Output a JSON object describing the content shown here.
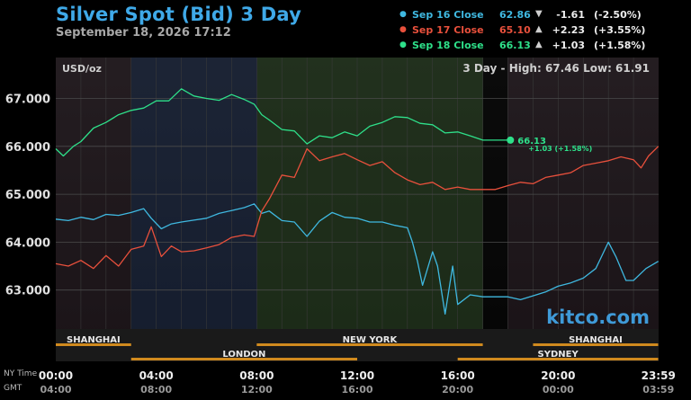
{
  "header": {
    "title": "Silver Spot (Bid) 3 Day",
    "subtitle": "September 18, 2026 17:12"
  },
  "legend": [
    {
      "name": "Sep 16 Close",
      "price": "62.86",
      "arrow": "▼",
      "change": "-1.61",
      "pct": "(-2.50%)",
      "color": "#3fb8e0"
    },
    {
      "name": "Sep 17 Close",
      "price": "65.10",
      "arrow": "▲",
      "change": "+2.23",
      "pct": "(+3.55%)",
      "color": "#e8503c"
    },
    {
      "name": "Sep 18 Close",
      "price": "66.13",
      "arrow": "▲",
      "change": "+1.03",
      "pct": "(+1.58%)",
      "color": "#2ee08a"
    }
  ],
  "chart_labels": {
    "unit": "USD/oz",
    "range_text": "3 Day - High: 67.46  Low: 61.91",
    "watermark": "kitco.com",
    "last_price": "66.13",
    "last_change": "+1.03 (+1.58%)",
    "ny_time_label": "NY Time",
    "gmt_label": "GMT"
  },
  "sessions_top": [
    {
      "name": "SHANGHAI",
      "start": "00:00",
      "end": "03:00"
    },
    {
      "name": "NEW YORK",
      "start": "08:00",
      "end": "17:00"
    },
    {
      "name": "SHANGHAI",
      "start": "19:00",
      "end": "23:59"
    }
  ],
  "sessions_bottom": [
    {
      "name": "LONDON",
      "start": "03:00",
      "end": "12:00"
    },
    {
      "name": "SYDNEY",
      "start": "16:00",
      "end": "23:59"
    }
  ],
  "time_axis": {
    "ny": [
      "00:00",
      "04:00",
      "08:00",
      "12:00",
      "16:00",
      "20:00",
      "23:59"
    ],
    "gmt": [
      "04:00",
      "08:00",
      "12:00",
      "16:00",
      "20:00",
      "00:00",
      "03:59"
    ]
  },
  "colors": {
    "sep16": "#3fb8e0",
    "sep17": "#e8503c",
    "sep18": "#2ee08a",
    "session_bar": "#d08a1e",
    "title": "#3fa9e8"
  },
  "chart_data": {
    "type": "line",
    "xlabel": "",
    "ylabel": "USD/oz",
    "x_unit": "hours since 00:00 NY time",
    "xlim": [
      0,
      24
    ],
    "ylim": [
      61.9,
      67.9
    ],
    "yticks": [
      63,
      64,
      65,
      66,
      67
    ],
    "ytick_labels": [
      "63.000",
      "64.000",
      "65.000",
      "66.000",
      "67.000"
    ],
    "series": [
      {
        "name": "Sep 16 Close",
        "x": [
          0,
          0.5,
          1,
          1.5,
          2,
          2.5,
          3,
          3.5,
          3.8,
          4.2,
          4.6,
          5,
          5.5,
          6,
          6.5,
          7,
          7.5,
          7.9,
          8.2,
          8.5,
          9,
          9.5,
          10,
          10.5,
          11,
          11.5,
          12,
          12.5,
          13,
          13.5,
          14,
          14.2,
          14.4,
          14.6,
          15,
          15.2,
          15.5,
          15.8,
          16,
          16.5,
          17,
          17.5,
          18,
          18.5,
          19,
          19.5,
          20,
          20.5,
          21,
          21.5,
          21.8,
          22,
          22.3,
          22.7,
          23,
          23.5,
          23.99
        ],
        "y": [
          64.48,
          64.45,
          64.52,
          64.47,
          64.58,
          64.56,
          64.62,
          64.7,
          64.5,
          64.28,
          64.38,
          64.42,
          64.46,
          64.5,
          64.6,
          64.66,
          64.72,
          64.8,
          64.6,
          64.65,
          64.45,
          64.42,
          64.12,
          64.44,
          64.62,
          64.52,
          64.5,
          64.42,
          64.42,
          64.35,
          64.3,
          64.0,
          63.6,
          63.1,
          63.8,
          63.5,
          62.5,
          63.5,
          62.7,
          62.9,
          62.86,
          62.86,
          62.86,
          62.8,
          62.88,
          62.96,
          63.08,
          63.15,
          63.25,
          63.45,
          63.78,
          64.0,
          63.7,
          63.2,
          63.2,
          63.45,
          63.6
        ]
      },
      {
        "name": "Sep 17 Close",
        "x": [
          0,
          0.5,
          1,
          1.5,
          2,
          2.5,
          3,
          3.5,
          3.8,
          4.2,
          4.6,
          5,
          5.5,
          6,
          6.5,
          7,
          7.5,
          7.9,
          8.2,
          8.5,
          9,
          9.5,
          10,
          10.5,
          11,
          11.5,
          12,
          12.5,
          13,
          13.5,
          14,
          14.5,
          15,
          15.5,
          16,
          16.5,
          17,
          17.5,
          18,
          18.5,
          19,
          19.5,
          20,
          20.5,
          21,
          21.5,
          22,
          22.5,
          23,
          23.3,
          23.6,
          23.99
        ],
        "y": [
          63.55,
          63.5,
          63.62,
          63.45,
          63.72,
          63.5,
          63.85,
          63.92,
          64.32,
          63.7,
          63.92,
          63.8,
          63.82,
          63.88,
          63.95,
          64.1,
          64.15,
          64.12,
          64.65,
          64.9,
          65.4,
          65.35,
          65.95,
          65.7,
          65.78,
          65.85,
          65.72,
          65.6,
          65.68,
          65.45,
          65.3,
          65.2,
          65.25,
          65.1,
          65.15,
          65.1,
          65.1,
          65.1,
          65.18,
          65.25,
          65.22,
          65.35,
          65.4,
          65.45,
          65.6,
          65.65,
          65.7,
          65.78,
          65.72,
          65.55,
          65.8,
          66.0
        ]
      },
      {
        "name": "Sep 18 Close",
        "x": [
          0,
          0.3,
          0.7,
          1,
          1.5,
          2,
          2.5,
          3,
          3.5,
          4,
          4.5,
          5,
          5.5,
          6,
          6.5,
          7,
          7.5,
          7.9,
          8.2,
          8.5,
          9,
          9.5,
          10,
          10.5,
          11,
          11.5,
          12,
          12.5,
          13,
          13.5,
          14,
          14.5,
          15,
          15.5,
          16,
          16.5,
          17,
          17.5,
          18.1
        ],
        "y": [
          65.95,
          65.8,
          66.0,
          66.1,
          66.38,
          66.5,
          66.66,
          66.75,
          66.8,
          66.95,
          66.95,
          67.2,
          67.05,
          67.0,
          66.96,
          67.08,
          66.98,
          66.88,
          66.66,
          66.55,
          66.35,
          66.32,
          66.05,
          66.22,
          66.18,
          66.3,
          66.22,
          66.42,
          66.5,
          66.62,
          66.6,
          66.48,
          66.45,
          66.28,
          66.3,
          66.22,
          66.13,
          66.13,
          66.13
        ]
      }
    ]
  }
}
